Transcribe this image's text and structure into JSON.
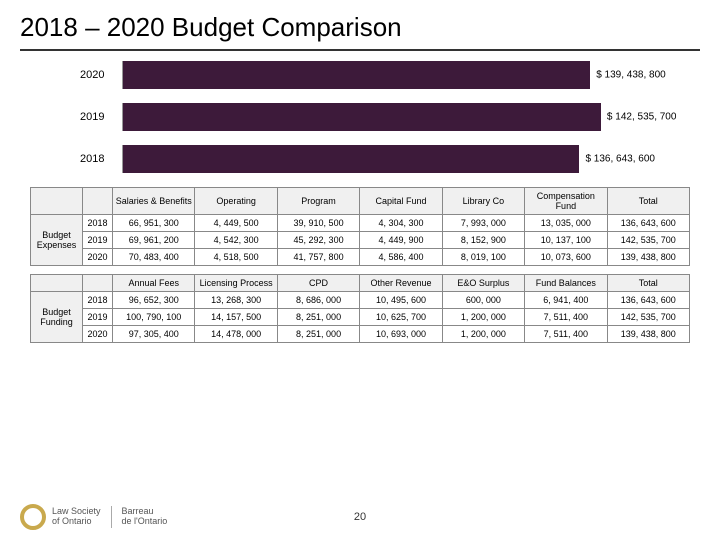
{
  "title": "2018 – 2020 Budget Comparison",
  "chart": {
    "type": "bar-horizontal",
    "bar_color": "#3d1a3a",
    "text_color": "#000000",
    "max_value": 160000000,
    "bars": [
      {
        "label": "2020",
        "value": 139438800,
        "display": "$ 139, 438, 800",
        "pct": 87
      },
      {
        "label": "2019",
        "value": 142535700,
        "display": "$ 142, 535, 700",
        "pct": 89
      },
      {
        "label": "2018",
        "value": 136643600,
        "display": "$ 136, 643, 600",
        "pct": 85
      }
    ]
  },
  "table1": {
    "group_label": "Budget Expenses",
    "columns": [
      "Salaries & Benefits",
      "Operating",
      "Program",
      "Capital Fund",
      "Library Co",
      "Compensation Fund",
      "Total"
    ],
    "rows": [
      {
        "year": "2018",
        "cells": [
          "66, 951, 300",
          "4, 449, 500",
          "39, 910, 500",
          "4, 304, 300",
          "7, 993, 000",
          "13, 035, 000",
          "136, 643, 600"
        ]
      },
      {
        "year": "2019",
        "cells": [
          "69, 961, 200",
          "4, 542, 300",
          "45, 292, 300",
          "4, 449, 900",
          "8, 152, 900",
          "10, 137, 100",
          "142, 535, 700"
        ]
      },
      {
        "year": "2020",
        "cells": [
          "70, 483, 400",
          "4, 518, 500",
          "41, 757, 800",
          "4, 586, 400",
          "8, 019, 100",
          "10, 073, 600",
          "139, 438, 800"
        ]
      }
    ]
  },
  "table2": {
    "group_label": "Budget Funding",
    "columns": [
      "Annual Fees",
      "Licensing Process",
      "CPD",
      "Other Revenue",
      "E&O Surplus",
      "Fund Balances",
      "Total"
    ],
    "rows": [
      {
        "year": "2018",
        "cells": [
          "96, 652, 300",
          "13, 268, 300",
          "8, 686, 000",
          "10, 495, 600",
          "600, 000",
          "6, 941, 400",
          "136, 643, 600"
        ]
      },
      {
        "year": "2019",
        "cells": [
          "100, 790, 100",
          "14, 157, 500",
          "8, 251, 000",
          "10, 625, 700",
          "1, 200, 000",
          "7, 511, 400",
          "142, 535, 700"
        ]
      },
      {
        "year": "2020",
        "cells": [
          "97, 305, 400",
          "14, 478, 000",
          "8, 251, 000",
          "10, 693, 000",
          "1, 200, 000",
          "7, 511, 400",
          "139, 438, 800"
        ]
      }
    ]
  },
  "footer": {
    "logo1_line1": "Law Society",
    "logo1_line2": "of Ontario",
    "logo2_line1": "Barreau",
    "logo2_line2": "de l'Ontario",
    "page_number": "20"
  }
}
